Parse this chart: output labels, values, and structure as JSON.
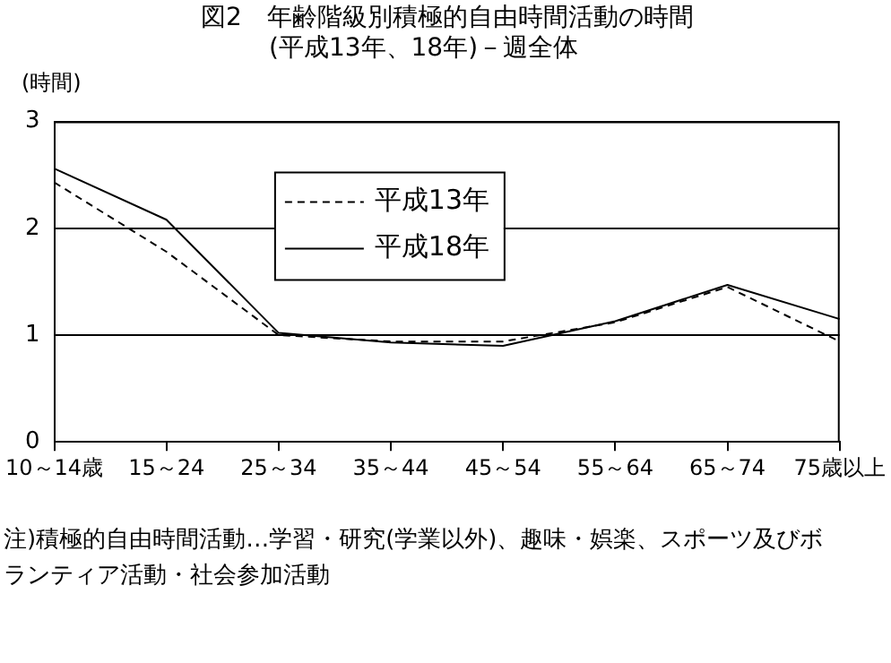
{
  "chart_data": {
    "type": "line",
    "title": "図2　年齢階級別積極的自由時間活動の時間(平成13年、18年)－週全体",
    "ylabel": "(時間)",
    "categories": [
      "10～14歳",
      "15～24",
      "25～34",
      "35～44",
      "45～54",
      "55～64",
      "65～74",
      "75歳以上"
    ],
    "series": [
      {
        "name": "平成13年",
        "color": "#000000",
        "line_style": "dashed",
        "values": [
          2.43,
          1.78,
          1.0,
          0.94,
          0.94,
          1.12,
          1.45,
          0.94
        ]
      },
      {
        "name": "平成18年",
        "color": "#000000",
        "line_style": "solid",
        "values": [
          2.56,
          2.08,
          1.02,
          0.93,
          0.9,
          1.13,
          1.47,
          1.15
        ]
      }
    ],
    "ylim": [
      0,
      3
    ],
    "yticks": [
      0,
      1,
      2,
      3
    ],
    "grid": "y",
    "legend": "top",
    "marker": "none",
    "annotations": [
      "注)積極的自由時間活動…学習・研究(学業以外)、趣味・娯楽、スポーツ及びボランティア活動・社会参加活動"
    ]
  }
}
